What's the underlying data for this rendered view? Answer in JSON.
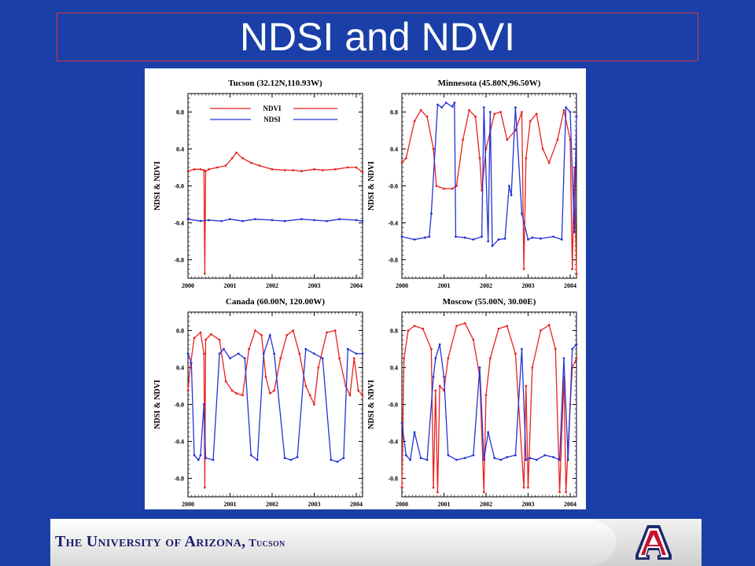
{
  "slide": {
    "title": "NDSI and NDVI"
  },
  "footer": {
    "university": "The University of Arizona,",
    "campus": "Tucson",
    "logo_icon": "block-a-logo-icon",
    "logo_letter": "A"
  },
  "colors": {
    "background": "#1a3fa8",
    "ndvi": "#e8221f",
    "ndsi": "#2433d6",
    "title_border": "#d23a3a"
  },
  "chart_data": [
    {
      "type": "line",
      "title": "Tucson (32.12N,110.93W)",
      "ylabel": "NDSI & NDVI",
      "xlim": [
        2000,
        2004.15
      ],
      "ylim": [
        -1.0,
        1.0
      ],
      "xticks": [
        "2000",
        "2001",
        "2002",
        "2003",
        "2004"
      ],
      "yticks": [
        "0.8",
        "0.4",
        "-0.0",
        "-0.4",
        "-0.8"
      ],
      "legend": {
        "position": "top-left",
        "entries": [
          "NDVI",
          "NDSI"
        ]
      },
      "series": [
        {
          "name": "NDVI",
          "color": "#e8221f",
          "x": [
            2000.0,
            2000.15,
            2000.3,
            2000.38,
            2000.4,
            2000.42,
            2000.5,
            2000.7,
            2000.9,
            2001.05,
            2001.15,
            2001.3,
            2001.5,
            2001.7,
            2002.0,
            2002.3,
            2002.5,
            2002.7,
            2003.0,
            2003.2,
            2003.5,
            2003.8,
            2004.0,
            2004.15
          ],
          "y": [
            0.16,
            0.18,
            0.18,
            0.17,
            -0.95,
            0.16,
            0.18,
            0.2,
            0.22,
            0.3,
            0.36,
            0.3,
            0.25,
            0.22,
            0.18,
            0.17,
            0.17,
            0.16,
            0.18,
            0.17,
            0.18,
            0.2,
            0.2,
            0.15
          ]
        },
        {
          "name": "NDSI",
          "color": "#2433d6",
          "x": [
            2000.0,
            2000.3,
            2000.5,
            2000.8,
            2001.0,
            2001.3,
            2001.6,
            2002.0,
            2002.3,
            2002.7,
            2003.0,
            2003.3,
            2003.6,
            2004.0,
            2004.15
          ],
          "y": [
            -0.36,
            -0.38,
            -0.37,
            -0.38,
            -0.36,
            -0.38,
            -0.36,
            -0.37,
            -0.38,
            -0.36,
            -0.37,
            -0.38,
            -0.36,
            -0.37,
            -0.38
          ]
        }
      ]
    },
    {
      "type": "line",
      "title": "Minnesota (45.80N,96.50W)",
      "ylabel": "NDSI & NDVI",
      "xlim": [
        2000,
        2004.15
      ],
      "ylim": [
        -1.0,
        1.0
      ],
      "xticks": [
        "2000",
        "2001",
        "2002",
        "2003",
        "2004"
      ],
      "yticks": [
        "0.8",
        "0.4",
        "-0.0",
        "-0.4",
        "-0.8"
      ],
      "series": [
        {
          "name": "NDVI",
          "color": "#e8221f",
          "x": [
            2000.0,
            2000.1,
            2000.3,
            2000.45,
            2000.6,
            2000.75,
            2000.82,
            2001.0,
            2001.2,
            2001.3,
            2001.45,
            2001.6,
            2001.75,
            2001.85,
            2001.9,
            2002.0,
            2002.2,
            2002.35,
            2002.5,
            2002.7,
            2002.85,
            2002.9,
            2002.95,
            2003.05,
            2003.2,
            2003.35,
            2003.5,
            2003.7,
            2003.85,
            2004.0,
            2004.05,
            2004.1,
            2004.15
          ],
          "y": [
            0.25,
            0.3,
            0.7,
            0.82,
            0.75,
            0.4,
            0.0,
            -0.03,
            -0.03,
            0.0,
            0.5,
            0.82,
            0.75,
            0.3,
            -0.05,
            0.4,
            0.78,
            0.8,
            0.5,
            0.6,
            0.8,
            -0.9,
            0.3,
            0.7,
            0.78,
            0.4,
            0.25,
            0.5,
            0.82,
            0.5,
            -0.9,
            0.2,
            -0.95
          ]
        },
        {
          "name": "NDSI",
          "color": "#2433d6",
          "x": [
            2000.0,
            2000.3,
            2000.55,
            2000.65,
            2000.7,
            2000.85,
            2000.95,
            2001.05,
            2001.2,
            2001.25,
            2001.28,
            2001.5,
            2001.7,
            2001.9,
            2001.95,
            2002.05,
            2002.1,
            2002.15,
            2002.3,
            2002.45,
            2002.55,
            2002.6,
            2002.7,
            2002.85,
            2003.0,
            2003.1,
            2003.3,
            2003.6,
            2003.8,
            2003.9,
            2004.0,
            2004.1,
            2004.15
          ],
          "y": [
            -0.55,
            -0.58,
            -0.56,
            -0.55,
            -0.3,
            0.88,
            0.85,
            0.9,
            0.86,
            0.9,
            -0.55,
            -0.56,
            -0.58,
            -0.55,
            0.85,
            -0.6,
            0.8,
            -0.65,
            -0.58,
            -0.57,
            0.0,
            -0.1,
            0.85,
            -0.3,
            -0.58,
            -0.56,
            -0.57,
            -0.55,
            -0.58,
            0.85,
            0.8,
            -0.5,
            0.75
          ]
        }
      ]
    },
    {
      "type": "line",
      "title": "Canada (60.00N, 120.00W)",
      "ylabel": "NDSI & NDVI",
      "xlim": [
        2000,
        2004.15
      ],
      "ylim": [
        -1.0,
        1.0
      ],
      "xticks": [
        "2000",
        "2001",
        "2002",
        "2003",
        "2004"
      ],
      "yticks": [
        "0.8",
        "0.4",
        "-0.0",
        "-0.4",
        "-0.8"
      ],
      "series": [
        {
          "name": "NDVI",
          "color": "#e8221f",
          "x": [
            2000.0,
            2000.05,
            2000.15,
            2000.3,
            2000.38,
            2000.4,
            2000.42,
            2000.55,
            2000.75,
            2000.9,
            2001.05,
            2001.15,
            2001.3,
            2001.45,
            2001.6,
            2001.75,
            2001.85,
            2001.95,
            2002.05,
            2002.2,
            2002.35,
            2002.5,
            2002.65,
            2002.8,
            2002.9,
            2003.0,
            2003.1,
            2003.3,
            2003.5,
            2003.6,
            2003.75,
            2003.85,
            2003.95,
            2004.05,
            2004.15
          ],
          "y": [
            0.15,
            0.4,
            0.72,
            0.78,
            0.55,
            -0.9,
            0.7,
            0.76,
            0.7,
            0.25,
            0.15,
            0.12,
            0.1,
            0.6,
            0.8,
            0.75,
            0.3,
            0.12,
            0.15,
            0.5,
            0.75,
            0.8,
            0.55,
            0.2,
            0.1,
            0.0,
            0.4,
            0.78,
            0.8,
            0.5,
            0.2,
            0.1,
            0.5,
            0.15,
            0.1
          ]
        },
        {
          "name": "NDSI",
          "color": "#2433d6",
          "x": [
            2000.0,
            2000.08,
            2000.15,
            2000.25,
            2000.3,
            2000.38,
            2000.42,
            2000.6,
            2000.75,
            2000.85,
            2001.0,
            2001.2,
            2001.35,
            2001.5,
            2001.65,
            2001.8,
            2001.95,
            2002.05,
            2002.3,
            2002.45,
            2002.6,
            2002.8,
            2003.0,
            2003.2,
            2003.4,
            2003.55,
            2003.7,
            2003.8,
            2004.0,
            2004.15
          ],
          "y": [
            0.55,
            0.45,
            -0.55,
            -0.6,
            -0.55,
            0.0,
            -0.58,
            -0.6,
            0.55,
            0.6,
            0.5,
            0.55,
            0.5,
            -0.55,
            -0.6,
            0.55,
            0.75,
            0.55,
            -0.58,
            -0.6,
            -0.57,
            0.6,
            0.55,
            0.5,
            -0.6,
            -0.62,
            -0.58,
            0.6,
            0.55,
            0.55
          ]
        }
      ]
    },
    {
      "type": "line",
      "title": "Moscow (55.00N, 30.00E)",
      "ylabel": "NDSI & NDVI",
      "xlim": [
        2000,
        2004.15
      ],
      "ylim": [
        -1.0,
        1.0
      ],
      "xticks": [
        "2000",
        "2001",
        "2002",
        "2003",
        "2004"
      ],
      "yticks": [
        "0.8",
        "0.4",
        "-0.0",
        "-0.4",
        "-0.8"
      ],
      "series": [
        {
          "name": "NDVI",
          "color": "#e8221f",
          "x": [
            2000.0,
            2000.05,
            2000.15,
            2000.3,
            2000.5,
            2000.7,
            2000.75,
            2000.8,
            2000.85,
            2000.9,
            2001.0,
            2001.1,
            2001.3,
            2001.5,
            2001.7,
            2001.85,
            2001.95,
            2002.0,
            2002.1,
            2002.3,
            2002.5,
            2002.7,
            2002.9,
            2002.95,
            2003.0,
            2003.1,
            2003.3,
            2003.5,
            2003.65,
            2003.75,
            2003.85,
            2003.9,
            2004.0,
            2004.05,
            2004.15
          ],
          "y": [
            -0.9,
            0.5,
            0.8,
            0.85,
            0.82,
            0.6,
            -0.9,
            0.15,
            -0.95,
            0.2,
            0.15,
            0.5,
            0.85,
            0.88,
            0.7,
            0.3,
            -0.95,
            0.1,
            0.5,
            0.82,
            0.85,
            0.55,
            -0.9,
            0.2,
            -0.9,
            0.4,
            0.8,
            0.86,
            0.6,
            -0.95,
            0.3,
            -0.95,
            0.0,
            0.4,
            0.5
          ]
        },
        {
          "name": "NDSI",
          "color": "#2433d6",
          "x": [
            2000.0,
            2000.1,
            2000.2,
            2000.3,
            2000.45,
            2000.6,
            2000.75,
            2000.8,
            2000.9,
            2001.0,
            2001.1,
            2001.3,
            2001.5,
            2001.7,
            2001.85,
            2001.95,
            2002.05,
            2002.2,
            2002.35,
            2002.5,
            2002.7,
            2002.85,
            2002.95,
            2003.05,
            2003.2,
            2003.4,
            2003.6,
            2003.75,
            2003.85,
            2003.95,
            2004.05,
            2004.15
          ],
          "y": [
            -0.2,
            -0.55,
            -0.6,
            -0.3,
            -0.58,
            -0.6,
            0.3,
            0.5,
            0.65,
            0.3,
            -0.55,
            -0.6,
            -0.58,
            -0.55,
            0.4,
            -0.6,
            -0.3,
            -0.58,
            -0.6,
            -0.57,
            -0.55,
            0.6,
            -0.6,
            -0.58,
            -0.6,
            -0.55,
            -0.57,
            -0.6,
            0.5,
            -0.6,
            0.6,
            0.65
          ]
        }
      ]
    }
  ]
}
